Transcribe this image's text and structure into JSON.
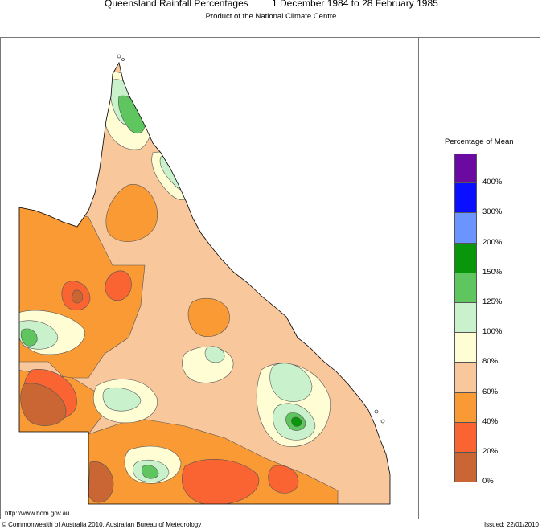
{
  "header": {
    "title_left": "Queensland Rainfall Percentages",
    "title_right": "1 December 1984 to 28 February 1985",
    "subtitle": "Product of the National Climate Centre"
  },
  "legend": {
    "title": "Percentage of Mean",
    "bins": [
      {
        "color": "#6a0aa0"
      },
      {
        "color": "#0a10ff"
      },
      {
        "color": "#6b94ff"
      },
      {
        "color": "#0a960a"
      },
      {
        "color": "#5fc55f"
      },
      {
        "color": "#c9f2cc"
      },
      {
        "color": "#fffdd4"
      },
      {
        "color": "#f8c79c"
      },
      {
        "color": "#f99a35"
      },
      {
        "color": "#fa6432"
      },
      {
        "color": "#c96633"
      }
    ],
    "labels": [
      "400%",
      "300%",
      "200%",
      "150%",
      "125%",
      "100%",
      "80%",
      "60%",
      "40%",
      "20%",
      "0%"
    ]
  },
  "footer": {
    "url": "http://www.bom.gov.au",
    "copyright": "© Commonwealth of Australia 2010, Australian Bureau of Meteorology",
    "issued": "Issued: 22/01/2010"
  }
}
